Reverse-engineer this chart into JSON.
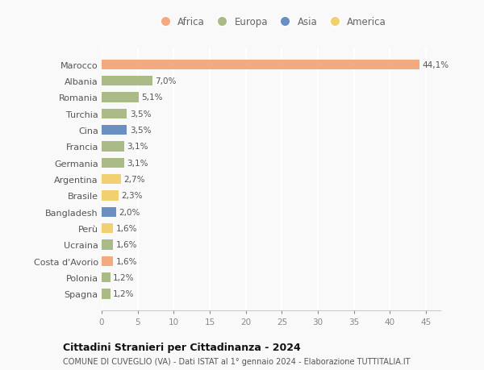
{
  "countries": [
    "Spagna",
    "Polonia",
    "Costa d'Avorio",
    "Ucraina",
    "Perù",
    "Bangladesh",
    "Brasile",
    "Argentina",
    "Germania",
    "Francia",
    "Cina",
    "Turchia",
    "Romania",
    "Albania",
    "Marocco"
  ],
  "values": [
    1.2,
    1.2,
    1.6,
    1.6,
    1.6,
    2.0,
    2.3,
    2.7,
    3.1,
    3.1,
    3.5,
    3.5,
    5.1,
    7.0,
    44.1
  ],
  "labels": [
    "1,2%",
    "1,2%",
    "1,6%",
    "1,6%",
    "1,6%",
    "2,0%",
    "2,3%",
    "2,7%",
    "3,1%",
    "3,1%",
    "3,5%",
    "3,5%",
    "5,1%",
    "7,0%",
    "44,1%"
  ],
  "continents": [
    "Europa",
    "Europa",
    "Africa",
    "Europa",
    "America",
    "Asia",
    "America",
    "America",
    "Europa",
    "Europa",
    "Asia",
    "Europa",
    "Europa",
    "Europa",
    "Africa"
  ],
  "continent_colors": {
    "Africa": "#F2AA7E",
    "Europa": "#AABB88",
    "Asia": "#6B8FC0",
    "America": "#F0D070"
  },
  "legend_order": [
    "Africa",
    "Europa",
    "Asia",
    "America"
  ],
  "title1": "Cittadini Stranieri per Cittadinanza - 2024",
  "title2": "COMUNE DI CUVEGLIO (VA) - Dati ISTAT al 1° gennaio 2024 - Elaborazione TUTTITALIA.IT",
  "xlim": [
    0,
    47
  ],
  "xticks": [
    0,
    5,
    10,
    15,
    20,
    25,
    30,
    35,
    40,
    45
  ],
  "background_color": "#f9f9f9",
  "grid_color": "#ffffff",
  "bar_height": 0.6
}
